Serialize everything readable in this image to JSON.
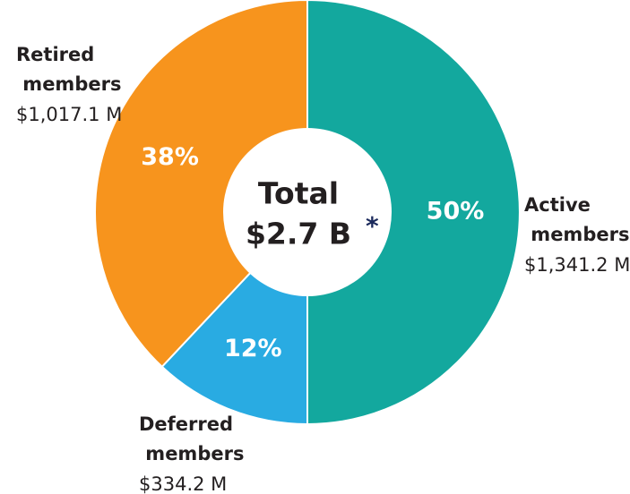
{
  "chart_data": {
    "type": "donut",
    "categories": [
      "Active members",
      "Deferred members",
      "Retired members"
    ],
    "values": [
      50,
      12,
      38
    ],
    "value_labels": [
      "50%",
      "12%",
      "38%"
    ],
    "amount_labels": [
      "$1,341.2 M",
      "$334.2 M",
      "$1,017.1 M"
    ],
    "colors": [
      "#13a89e",
      "#29abe2",
      "#f7941d"
    ],
    "center_title": "Total",
    "center_value": "$2.7 B",
    "center_note": "*"
  }
}
